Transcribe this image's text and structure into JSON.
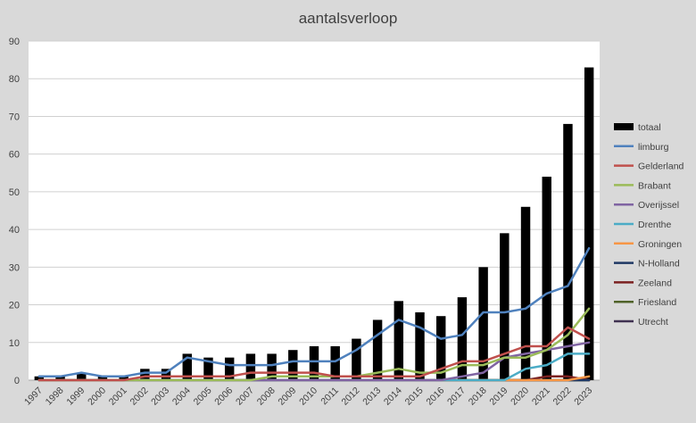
{
  "chart_data": {
    "type": "bar+line",
    "title": "aantalsverloop",
    "ylim": [
      0,
      90
    ],
    "yticks": [
      "0",
      "10",
      "20",
      "30",
      "40",
      "50",
      "60",
      "70",
      "80",
      "90"
    ],
    "grid": "horizontal",
    "legend_position": "right",
    "categories": [
      "1997",
      "1998",
      "1999",
      "2000",
      "2001",
      "2002",
      "2003",
      "2004",
      "2005",
      "2006",
      "2007",
      "2008",
      "2009",
      "2010",
      "2011",
      "2012",
      "2013",
      "2014",
      "2015",
      "2016",
      "2017",
      "2018",
      "2019",
      "2020",
      "2021",
      "2022",
      "2023"
    ],
    "bar_series": {
      "name": "totaal",
      "color": "#000000",
      "values": [
        1,
        1,
        2,
        1,
        1,
        3,
        3,
        7,
        6,
        6,
        7,
        7,
        8,
        9,
        9,
        11,
        16,
        21,
        18,
        17,
        22,
        30,
        39,
        46,
        54,
        68,
        83
      ]
    },
    "series": [
      {
        "name": "limburg",
        "color": "#4f81bd",
        "values": [
          1,
          1,
          2,
          1,
          1,
          2,
          2,
          6,
          5,
          4,
          4,
          4,
          5,
          5,
          5,
          8,
          12,
          16,
          14,
          11,
          12,
          18,
          18,
          19,
          23,
          25,
          35
        ]
      },
      {
        "name": "Gelderland",
        "color": "#c0504d",
        "values": [
          0,
          0,
          0,
          0,
          0,
          1,
          1,
          1,
          1,
          1,
          2,
          2,
          2,
          2,
          1,
          1,
          1,
          1,
          1,
          3,
          5,
          5,
          7,
          9,
          9,
          14,
          11
        ]
      },
      {
        "name": "Brabant",
        "color": "#9bbb59",
        "values": [
          0,
          0,
          0,
          0,
          0,
          0,
          0,
          0,
          0,
          0,
          0,
          1,
          1,
          1,
          1,
          1,
          2,
          3,
          2,
          2,
          4,
          4,
          6,
          6,
          8,
          12,
          19
        ]
      },
      {
        "name": "Overijssel",
        "color": "#8064a2",
        "values": [
          0,
          0,
          0,
          0,
          0,
          0,
          0,
          0,
          0,
          0,
          0,
          0,
          0,
          0,
          0,
          0,
          0,
          0,
          0,
          0,
          1,
          2,
          6,
          7,
          8,
          9,
          10
        ]
      },
      {
        "name": "Drenthe",
        "color": "#4bacc6",
        "values": [
          0,
          0,
          0,
          0,
          0,
          0,
          0,
          0,
          0,
          0,
          0,
          0,
          0,
          0,
          0,
          0,
          0,
          0,
          0,
          0,
          0,
          0,
          0,
          3,
          4,
          7,
          7
        ]
      },
      {
        "name": "Groningen",
        "color": "#f79646",
        "values": [
          0,
          0,
          0,
          0,
          0,
          0,
          0,
          0,
          0,
          0,
          0,
          0,
          0,
          0,
          0,
          0,
          0,
          0,
          0,
          0,
          0,
          0,
          0,
          0,
          0,
          0,
          1
        ]
      },
      {
        "name": "N-Holland",
        "color": "#1f3864",
        "values": [
          0,
          0,
          0,
          0,
          0,
          0,
          0,
          0,
          0,
          0,
          0,
          0,
          0,
          0,
          0,
          0,
          0,
          0,
          0,
          0,
          0,
          0,
          0,
          0,
          0,
          0,
          0
        ]
      },
      {
        "name": "Zeeland",
        "color": "#7b2020",
        "values": [
          0,
          0,
          0,
          0,
          0,
          0,
          0,
          0,
          0,
          0,
          0,
          0,
          0,
          0,
          0,
          0,
          0,
          0,
          0,
          0,
          0,
          0,
          0,
          0,
          1,
          1,
          0
        ]
      },
      {
        "name": "Friesland",
        "color": "#4f6228",
        "values": [
          0,
          0,
          0,
          0,
          0,
          0,
          0,
          0,
          0,
          0,
          0,
          0,
          0,
          0,
          0,
          0,
          0,
          0,
          0,
          0,
          0,
          0,
          0,
          0,
          0,
          0,
          0
        ]
      },
      {
        "name": "Utrecht",
        "color": "#3f3151",
        "values": [
          0,
          0,
          0,
          0,
          0,
          0,
          0,
          0,
          0,
          0,
          0,
          0,
          0,
          0,
          0,
          0,
          0,
          0,
          0,
          0,
          0,
          0,
          0,
          0,
          0,
          0,
          0
        ]
      }
    ]
  }
}
